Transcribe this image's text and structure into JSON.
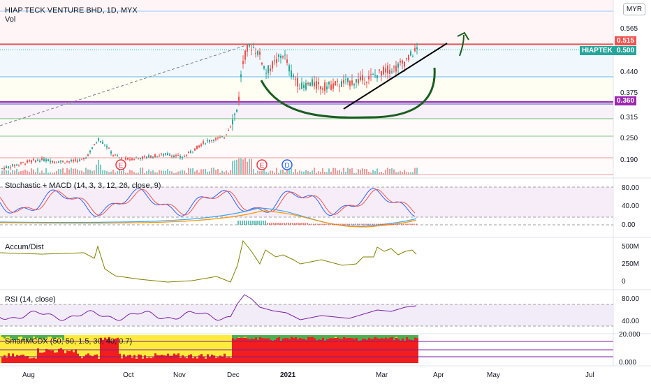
{
  "header": {
    "title": "HIAP TECK VENTURE BHD, 1D, MYX",
    "vol_label": "Vol",
    "currency": "MYR"
  },
  "price_axis": {
    "ticks": [
      "0.565",
      "0.440",
      "0.375",
      "0.315",
      "0.250",
      "0.190"
    ],
    "tags": [
      {
        "label": "0.515",
        "color": "#ef5350"
      },
      {
        "label": "0.500",
        "color": "#26a69a",
        "symbol": "HIAPTEK"
      },
      {
        "label": "0.360",
        "color": "#9c27b0"
      }
    ]
  },
  "time_axis": {
    "labels": [
      "Aug",
      "Oct",
      "Nov",
      "Dec",
      "2021",
      "Mar",
      "Apr",
      "May",
      "Jul"
    ]
  },
  "events": [
    "E",
    "E",
    "D"
  ],
  "panels": {
    "stoch_macd": {
      "title": "Stochastic + MACD (14, 3, 3, 12, 26, close, 9)",
      "ticks": [
        "80.00",
        "40.00",
        "0.00"
      ]
    },
    "accum": {
      "title": "Accum/Dist",
      "ticks": [
        "500M",
        "250M",
        "0"
      ]
    },
    "rsi": {
      "title": "RSI (14, close)",
      "ticks": [
        "80.00",
        "40.00"
      ]
    },
    "smart": {
      "title": "SmartMCDX (50, 50, 1.5, 30, 40, 0.7)",
      "ticks": [
        "20.000",
        "0.000"
      ]
    }
  },
  "colors": {
    "up": "#26a69a",
    "down": "#ef5350",
    "resistance": "#ef5350",
    "support": "#9c27b0",
    "ad_line": "#808000",
    "rsi_line": "#7b1fa2",
    "stoch_k": "#2962ff",
    "stoch_d": "#ef5350",
    "cup": "#1b5e20",
    "trend": "#000000"
  },
  "chart_data": {
    "type": "candlestick",
    "title": "HIAP TECK VENTURE BHD, 1D, MYX",
    "price_range": [
      0.165,
      0.615
    ],
    "resistance_level": 0.515,
    "support_level": 0.36,
    "last_price": 0.5,
    "price_series": [
      [
        0,
        0.18
      ],
      [
        20,
        0.19
      ],
      [
        40,
        0.2
      ],
      [
        60,
        0.205
      ],
      [
        80,
        0.2
      ],
      [
        100,
        0.2
      ],
      [
        120,
        0.205
      ],
      [
        140,
        0.26
      ],
      [
        150,
        0.245
      ],
      [
        160,
        0.22
      ],
      [
        175,
        0.205
      ],
      [
        200,
        0.21
      ],
      [
        220,
        0.215
      ],
      [
        240,
        0.22
      ],
      [
        260,
        0.21
      ],
      [
        275,
        0.23
      ],
      [
        290,
        0.25
      ],
      [
        305,
        0.26
      ],
      [
        320,
        0.265
      ],
      [
        330,
        0.3
      ],
      [
        340,
        0.35
      ],
      [
        345,
        0.45
      ],
      [
        352,
        0.5
      ],
      [
        360,
        0.51
      ],
      [
        370,
        0.49
      ],
      [
        380,
        0.44
      ],
      [
        395,
        0.47
      ],
      [
        405,
        0.49
      ],
      [
        415,
        0.44
      ],
      [
        430,
        0.4
      ],
      [
        445,
        0.41
      ],
      [
        460,
        0.4
      ],
      [
        475,
        0.405
      ],
      [
        490,
        0.41
      ],
      [
        505,
        0.415
      ],
      [
        520,
        0.42
      ],
      [
        535,
        0.43
      ],
      [
        550,
        0.445
      ],
      [
        565,
        0.45
      ],
      [
        580,
        0.47
      ],
      [
        595,
        0.5
      ]
    ]
  }
}
